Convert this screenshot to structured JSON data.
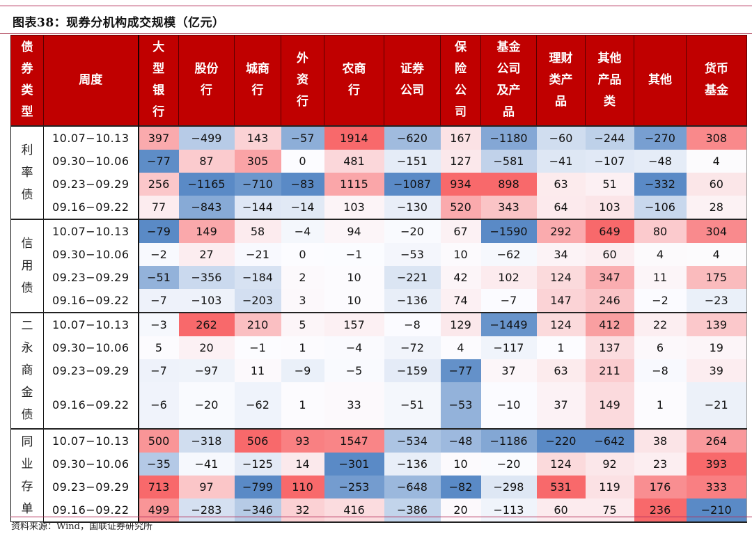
{
  "title": "图表38：现券分机构成交规模（亿元）",
  "source": "资料来源：Wind，国联证券研究所",
  "colors": {
    "header_bg": "#c00000",
    "rule": "#b5305a",
    "pos_max": "#f8696b",
    "neg_max": "#5a8ac6"
  },
  "header": {
    "bond_type": "债\n券\n类\n型",
    "week": "周度",
    "columns": [
      "大\n型\n银\n行",
      "股份\n行",
      "城商\n行",
      "外\n资\n行",
      "农商\n行",
      "证券\n公司",
      "保\n险\n公\n司",
      "基金\n公司\n及产\n品",
      "理财\n类产\n品",
      "其他\n产品\n类",
      "其他",
      "货币\n基金"
    ]
  },
  "groups": [
    {
      "label": "利\n率\n债",
      "rows": [
        {
          "week": "10.07-10.13",
          "values": [
            "397",
            "-499",
            "143",
            "-57",
            "1914",
            "-620",
            "167",
            "-1180",
            "-60",
            "-244",
            "-270",
            "308"
          ]
        },
        {
          "week": "09.30-10.06",
          "values": [
            "-77",
            "87",
            "305",
            "0",
            "481",
            "-151",
            "127",
            "-581",
            "-41",
            "-107",
            "-48",
            "4"
          ]
        },
        {
          "week": "09.23-09.29",
          "values": [
            "256",
            "-1165",
            "-710",
            "-83",
            "1115",
            "-1087",
            "934",
            "898",
            "63",
            "51",
            "-332",
            "60"
          ]
        },
        {
          "week": "09.16-09.22",
          "values": [
            "77",
            "-843",
            "-144",
            "-14",
            "103",
            "-130",
            "520",
            "343",
            "64",
            "103",
            "-106",
            "28"
          ]
        }
      ]
    },
    {
      "label": "信\n用\n债",
      "rows": [
        {
          "week": "10.07-10.13",
          "values": [
            "-79",
            "149",
            "58",
            "-4",
            "94",
            "-20",
            "67",
            "-1590",
            "292",
            "649",
            "80",
            "304"
          ]
        },
        {
          "week": "09.30-10.06",
          "values": [
            "-2",
            "27",
            "-21",
            "0",
            "-1",
            "-53",
            "10",
            "-62",
            "34",
            "60",
            "4",
            "4"
          ]
        },
        {
          "week": "09.23-09.29",
          "values": [
            "-51",
            "-356",
            "-184",
            "2",
            "10",
            "-221",
            "42",
            "102",
            "124",
            "347",
            "11",
            "175"
          ]
        },
        {
          "week": "09.16-09.22",
          "values": [
            "-7",
            "-103",
            "-203",
            "3",
            "10",
            "-136",
            "74",
            "-7",
            "147",
            "246",
            "-2",
            "-23"
          ]
        }
      ]
    },
    {
      "label": "二\n永\n商\n金\n债",
      "rows": [
        {
          "week": "10.07-10.13",
          "values": [
            "-3",
            "262",
            "210",
            "5",
            "157",
            "-8",
            "129",
            "-1449",
            "124",
            "412",
            "22",
            "139"
          ]
        },
        {
          "week": "09.30-10.06",
          "values": [
            "5",
            "20",
            "-1",
            "1",
            "-4",
            "-72",
            "4",
            "-117",
            "1",
            "137",
            "6",
            "19"
          ]
        },
        {
          "week": "09.23-09.29",
          "values": [
            "-7",
            "-97",
            "11",
            "-9",
            "-5",
            "-159",
            "-77",
            "37",
            "63",
            "211",
            "-8",
            "39"
          ]
        },
        {
          "week": "09.16-09.22",
          "values": [
            "-6",
            "-20",
            "-62",
            "1",
            "33",
            "-51",
            "-53",
            "-10",
            "37",
            "149",
            "1",
            "-21"
          ]
        }
      ]
    },
    {
      "label": "同\n业\n存\n单",
      "rows": [
        {
          "week": "10.07-10.13",
          "values": [
            "500",
            "-318",
            "506",
            "93",
            "1547",
            "-534",
            "-48",
            "-1186",
            "-220",
            "-642",
            "38",
            "264"
          ]
        },
        {
          "week": "09.30-10.06",
          "values": [
            "-35",
            "-41",
            "-125",
            "14",
            "-301",
            "-136",
            "10",
            "-20",
            "124",
            "92",
            "23",
            "393"
          ]
        },
        {
          "week": "09.23-09.29",
          "values": [
            "713",
            "97",
            "-799",
            "110",
            "-253",
            "-648",
            "-82",
            "-298",
            "531",
            "119",
            "176",
            "333"
          ]
        },
        {
          "week": "09.16-09.22",
          "values": [
            "499",
            "-283",
            "-346",
            "32",
            "416",
            "-386",
            "20",
            "-113",
            "60",
            "75",
            "236",
            "-210"
          ]
        }
      ]
    }
  ],
  "chart_data": {
    "type": "table",
    "title": "图表38：现券分机构成交规模（亿元）",
    "columns": [
      "债券类型",
      "周度",
      "大型银行",
      "股份行",
      "城商行",
      "外资行",
      "农商行",
      "证券公司",
      "保险公司",
      "基金公司及产品",
      "理财类产品",
      "其他产品类",
      "其他",
      "货币基金"
    ],
    "rows": [
      [
        "利率债",
        "10.07-10.13",
        397,
        -499,
        143,
        -57,
        1914,
        -620,
        167,
        -1180,
        -60,
        -244,
        -270,
        308
      ],
      [
        "利率债",
        "09.30-10.06",
        -77,
        87,
        305,
        0,
        481,
        -151,
        127,
        -581,
        -41,
        -107,
        -48,
        4
      ],
      [
        "利率债",
        "09.23-09.29",
        256,
        -1165,
        -710,
        -83,
        1115,
        -1087,
        934,
        898,
        63,
        51,
        -332,
        60
      ],
      [
        "利率债",
        "09.16-09.22",
        77,
        -843,
        -144,
        -14,
        103,
        -130,
        520,
        343,
        64,
        103,
        -106,
        28
      ],
      [
        "信用债",
        "10.07-10.13",
        -79,
        149,
        58,
        -4,
        94,
        -20,
        67,
        -1590,
        292,
        649,
        80,
        304
      ],
      [
        "信用债",
        "09.30-10.06",
        -2,
        27,
        -21,
        0,
        -1,
        -53,
        10,
        -62,
        34,
        60,
        4,
        4
      ],
      [
        "信用债",
        "09.23-09.29",
        -51,
        -356,
        -184,
        2,
        10,
        -221,
        42,
        102,
        124,
        347,
        11,
        175
      ],
      [
        "信用债",
        "09.16-09.22",
        -7,
        -103,
        -203,
        3,
        10,
        -136,
        74,
        -7,
        147,
        246,
        -2,
        -23
      ],
      [
        "二永商金债",
        "10.07-10.13",
        -3,
        262,
        210,
        5,
        157,
        -8,
        129,
        -1449,
        124,
        412,
        22,
        139
      ],
      [
        "二永商金债",
        "09.30-10.06",
        5,
        20,
        -1,
        1,
        -4,
        -72,
        4,
        -117,
        1,
        137,
        6,
        19
      ],
      [
        "二永商金债",
        "09.23-09.29",
        -7,
        -97,
        11,
        -9,
        -5,
        -159,
        -77,
        37,
        63,
        211,
        -8,
        39
      ],
      [
        "二永商金债",
        "09.16-09.22",
        -6,
        -20,
        -62,
        1,
        33,
        -51,
        -53,
        -10,
        37,
        149,
        1,
        -21
      ],
      [
        "同业存单",
        "10.07-10.13",
        500,
        -318,
        506,
        93,
        1547,
        -534,
        -48,
        -1186,
        -220,
        -642,
        38,
        264
      ],
      [
        "同业存单",
        "09.30-10.06",
        -35,
        -41,
        -125,
        14,
        -301,
        -136,
        10,
        -20,
        124,
        92,
        23,
        393
      ],
      [
        "同业存单",
        "09.23-09.29",
        713,
        97,
        -799,
        110,
        -253,
        -648,
        -82,
        -298,
        531,
        119,
        176,
        333
      ],
      [
        "同业存单",
        "09.16-09.22",
        499,
        -283,
        -346,
        32,
        416,
        -386,
        20,
        -113,
        60,
        75,
        236,
        -210
      ]
    ],
    "unit": "亿元",
    "color_scale": "column-wise diverging: red = net buy (positive), blue = net sell (negative)"
  }
}
